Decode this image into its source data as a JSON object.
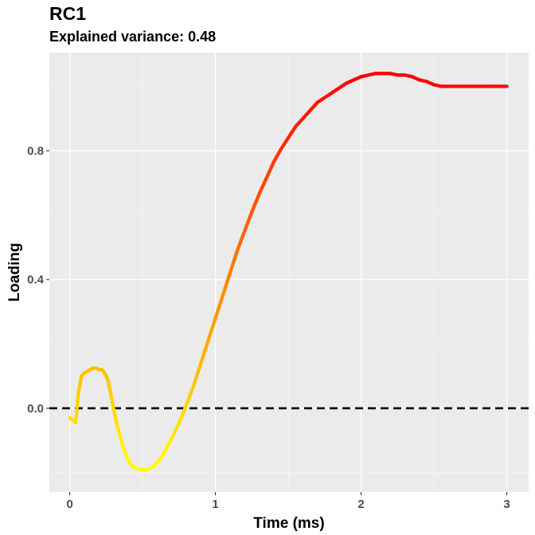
{
  "chart_data": {
    "type": "scatter",
    "title": "RC1",
    "subtitle": "Explained variance: 0.48",
    "xlabel": "Time (ms)",
    "ylabel": "Loading",
    "xlim": [
      -0.14,
      3.15
    ],
    "ylim": [
      -0.26,
      1.105
    ],
    "x_ticks": [
      0,
      1,
      2,
      3
    ],
    "x_tick_labels": [
      "0",
      "1",
      "2",
      "3"
    ],
    "y_ticks": [
      0.0,
      0.4,
      0.8
    ],
    "y_tick_labels": [
      "0.0",
      "0.4",
      "0.8"
    ],
    "grid": true,
    "reference_line": {
      "y": 0.0,
      "style": "dashed",
      "color": "#000000"
    },
    "color_scale": {
      "low": "#ffff00",
      "high": "#ff0000",
      "mapped_to": "Loading",
      "domain": [
        -0.19,
        1.04
      ]
    },
    "series": [
      {
        "x": [
          0.0,
          0.02,
          0.04,
          0.06,
          0.08,
          0.1,
          0.12,
          0.14,
          0.16,
          0.18,
          0.2,
          0.22,
          0.24,
          0.26,
          0.28,
          0.3,
          0.33,
          0.36,
          0.39,
          0.42,
          0.45,
          0.48,
          0.5,
          0.53,
          0.56,
          0.6,
          0.64,
          0.68,
          0.72,
          0.76,
          0.8,
          0.85,
          0.9,
          0.95,
          1.0,
          1.05,
          1.1,
          1.15,
          1.2,
          1.25,
          1.3,
          1.35,
          1.4,
          1.45,
          1.5,
          1.55,
          1.6,
          1.65,
          1.7,
          1.75,
          1.8,
          1.85,
          1.9,
          1.95,
          2.0,
          2.05,
          2.1,
          2.15,
          2.2,
          2.25,
          2.3,
          2.35,
          2.4,
          2.45,
          2.5,
          2.55,
          2.6,
          2.65,
          2.7,
          2.75,
          2.8,
          2.85,
          2.9,
          2.95,
          3.0
        ],
        "y": [
          -0.03,
          -0.035,
          -0.045,
          0.05,
          0.1,
          0.11,
          0.115,
          0.12,
          0.125,
          0.125,
          0.12,
          0.12,
          0.11,
          0.09,
          0.05,
          0.0,
          -0.06,
          -0.11,
          -0.15,
          -0.175,
          -0.185,
          -0.19,
          -0.19,
          -0.19,
          -0.185,
          -0.17,
          -0.145,
          -0.11,
          -0.075,
          -0.035,
          0.01,
          0.07,
          0.14,
          0.21,
          0.28,
          0.35,
          0.42,
          0.49,
          0.55,
          0.61,
          0.665,
          0.715,
          0.765,
          0.805,
          0.84,
          0.875,
          0.9,
          0.925,
          0.95,
          0.965,
          0.98,
          0.995,
          1.01,
          1.02,
          1.03,
          1.035,
          1.04,
          1.04,
          1.04,
          1.035,
          1.035,
          1.03,
          1.02,
          1.015,
          1.005,
          1.0,
          1.0,
          1.0,
          1.0,
          1.0,
          1.0,
          1.0,
          1.0,
          1.0,
          1.0
        ]
      }
    ]
  }
}
